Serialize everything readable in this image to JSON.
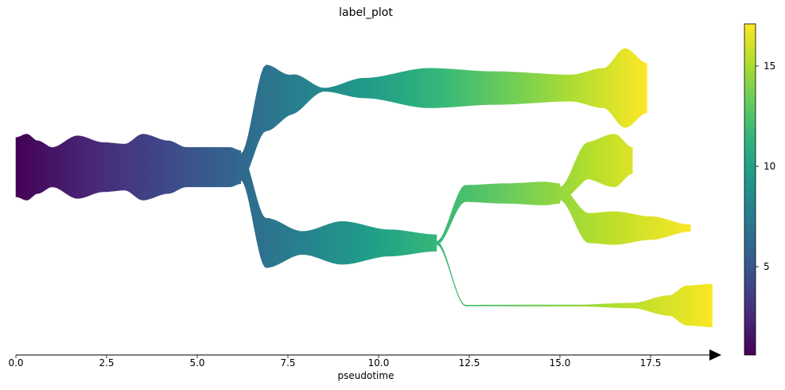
{
  "chart_data": {
    "type": "area",
    "title": "label_plot",
    "xlabel": "pseudotime",
    "ylabel": "",
    "xlim": [
      0.0,
      19.3
    ],
    "x_ticks": [
      0.0,
      2.5,
      5.0,
      7.5,
      10.0,
      12.5,
      15.0,
      17.5
    ],
    "x_tick_labels": [
      "0.0",
      "2.5",
      "5.0",
      "7.5",
      "10.0",
      "12.5",
      "15.0",
      "17.5"
    ],
    "colorbar": {
      "colormap": "viridis",
      "range": [
        0.6,
        17.1
      ],
      "ticks": [
        5,
        10,
        15
      ],
      "tick_labels": [
        "5",
        "10",
        "15"
      ]
    },
    "grid": false,
    "branches": [
      {
        "id": "root",
        "center": [
          [
            0.0,
            0
          ],
          [
            6.2,
            0
          ]
        ],
        "width": [
          [
            0.0,
            18
          ],
          [
            0.3,
            20
          ],
          [
            0.6,
            16
          ],
          [
            1.0,
            12
          ],
          [
            1.7,
            19
          ],
          [
            2.4,
            15
          ],
          [
            3.0,
            14
          ],
          [
            3.5,
            20
          ],
          [
            4.2,
            16
          ],
          [
            4.7,
            12
          ],
          [
            5.2,
            12
          ],
          [
            5.9,
            12
          ],
          [
            6.2,
            10
          ]
        ],
        "color_range": [
          0.6,
          6.1
        ]
      },
      {
        "id": "upper",
        "center": [
          [
            6.2,
            0
          ],
          [
            6.9,
            42
          ],
          [
            8.5,
            47
          ],
          [
            9.6,
            48
          ],
          [
            11.4,
            48
          ],
          [
            13.2,
            48
          ],
          [
            15.3,
            48
          ],
          [
            16.8,
            48
          ],
          [
            17.4,
            48
          ]
        ],
        "width": [
          [
            6.2,
            8
          ],
          [
            6.9,
            20
          ],
          [
            7.6,
            12
          ],
          [
            8.5,
            1
          ],
          [
            9.6,
            6
          ],
          [
            11.4,
            12
          ],
          [
            13.2,
            10
          ],
          [
            15.3,
            8
          ],
          [
            16.2,
            12
          ],
          [
            16.8,
            24
          ],
          [
            17.4,
            15
          ]
        ],
        "color_range": [
          6.2,
          17.1
        ]
      },
      {
        "id": "lower",
        "center": [
          [
            6.2,
            0
          ],
          [
            6.9,
            -46
          ],
          [
            9.0,
            -46
          ],
          [
            11.6,
            -46
          ]
        ],
        "width": [
          [
            6.2,
            8
          ],
          [
            6.9,
            15
          ],
          [
            7.9,
            7
          ],
          [
            9.0,
            13
          ],
          [
            10.3,
            8
          ],
          [
            11.6,
            5
          ]
        ],
        "color_range": [
          6.2,
          11.6
        ]
      },
      {
        "id": "mid",
        "center": [
          [
            11.6,
            -46
          ],
          [
            12.4,
            -16
          ],
          [
            15.0,
            -16
          ]
        ],
        "width": [
          [
            11.6,
            1
          ],
          [
            12.4,
            5
          ],
          [
            13.5,
            6
          ],
          [
            14.6,
            7
          ],
          [
            15.0,
            6
          ]
        ],
        "color_range": [
          11.6,
          14.5
        ]
      },
      {
        "id": "mid_top",
        "center": [
          [
            15.0,
            -16
          ],
          [
            15.8,
            4
          ],
          [
            17.0,
            4
          ]
        ],
        "width": [
          [
            15.0,
            4
          ],
          [
            15.7,
            11
          ],
          [
            16.5,
            16
          ],
          [
            17.0,
            8
          ]
        ],
        "color_range": [
          14.5,
          16.3
        ]
      },
      {
        "id": "mid_bottom",
        "center": [
          [
            15.0,
            -16
          ],
          [
            15.8,
            -37
          ],
          [
            18.6,
            -37
          ]
        ],
        "width": [
          [
            15.0,
            4
          ],
          [
            15.8,
            9
          ],
          [
            16.5,
            10
          ],
          [
            17.5,
            7
          ],
          [
            18.6,
            2
          ]
        ],
        "color_range": [
          14.5,
          17.0
        ]
      },
      {
        "id": "bottom",
        "center": [
          [
            11.6,
            -46
          ],
          [
            12.4,
            -84
          ],
          [
            19.2,
            -84
          ]
        ],
        "width": [
          [
            11.6,
            1
          ],
          [
            12.4,
            0.3
          ],
          [
            15.5,
            0.4
          ],
          [
            17.0,
            1.5
          ],
          [
            18.0,
            6
          ],
          [
            18.5,
            12
          ],
          [
            19.2,
            13
          ]
        ],
        "color_range": [
          11.6,
          17.0
        ]
      }
    ]
  }
}
